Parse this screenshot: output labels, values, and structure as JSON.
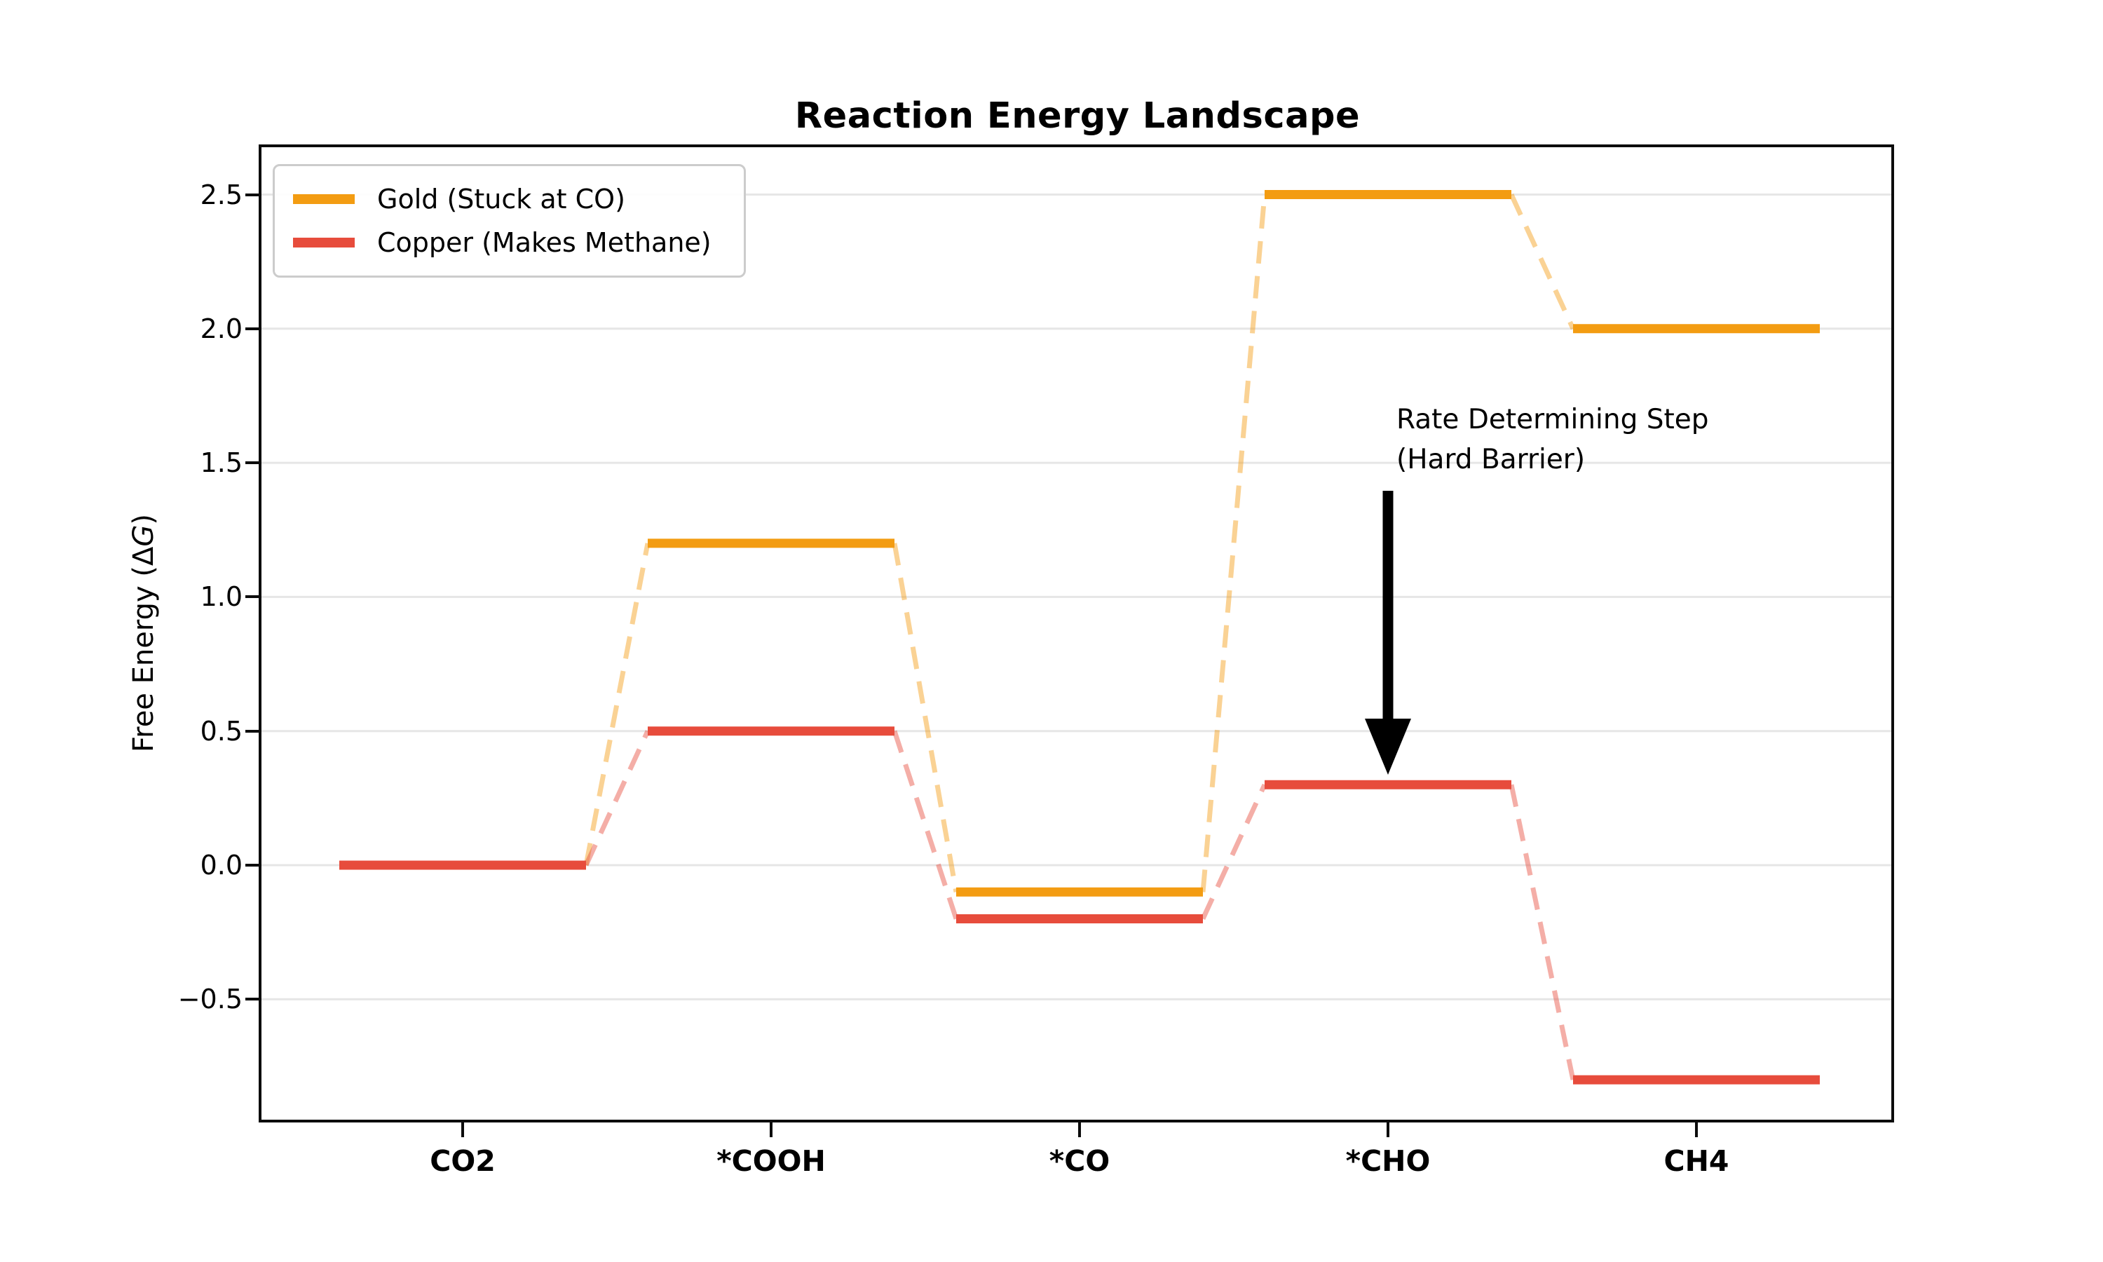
{
  "page": {
    "background": "#ffffff"
  },
  "chart_data": {
    "type": "line",
    "variant": "reaction-energy-step-diagram",
    "title": "Reaction Energy Landscape",
    "ylabel": "Free Energy (ΔG)",
    "ylabel_parts": {
      "prefix": "Free Energy (Δ",
      "italic": "G",
      "suffix": ")"
    },
    "categories": [
      "CO2",
      "*COOH",
      "*CO",
      "*CHO",
      "CH4"
    ],
    "series": [
      {
        "name": "Gold (Stuck at CO)",
        "color": "#F39C12",
        "values": [
          0.0,
          1.2,
          -0.1,
          2.5,
          2.0
        ]
      },
      {
        "name": "Copper (Makes Methane)",
        "color": "#E74C3C",
        "values": [
          0.0,
          0.5,
          -0.2,
          0.3,
          -0.8
        ]
      }
    ],
    "yticks": [
      2.5,
      2.0,
      1.5,
      1.0,
      0.5,
      0.0,
      -0.5
    ],
    "ylim": [
      -0.95,
      2.68
    ],
    "grid": true,
    "grid_color": "#e6e6e6",
    "legend_position": "upper left",
    "line_style": {
      "level": "solid",
      "connector": "dashed"
    },
    "annotation": {
      "line1": "Rate Determining Step",
      "line2": "(Hard Barrier)",
      "arrow_color": "#000000",
      "points_to": "Copper level at *CHO"
    }
  }
}
